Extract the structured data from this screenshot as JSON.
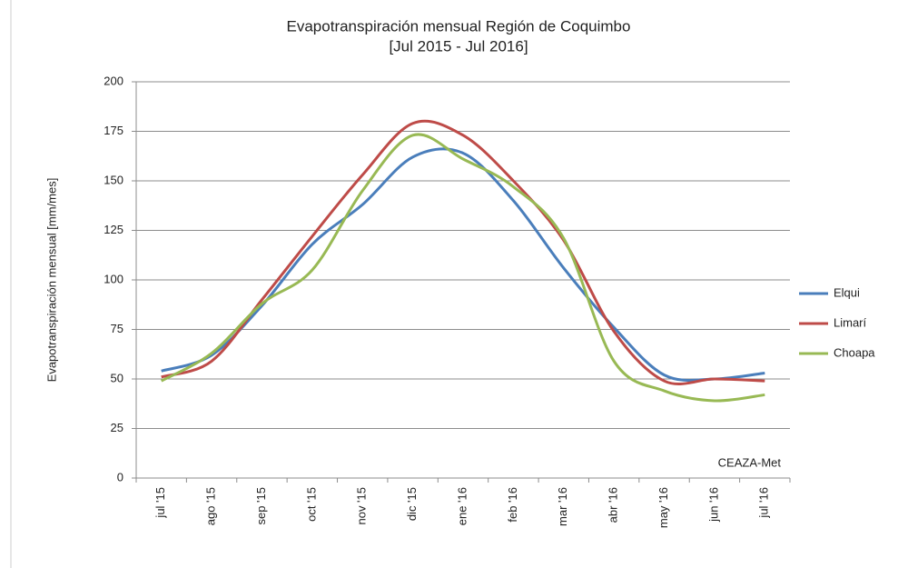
{
  "chart_data": {
    "type": "line",
    "title": "Evapotranspiración mensual Región de Coquimbo",
    "subtitle": "[Jul 2015 - Jul 2016]",
    "y_label": "Evapotranspiración mensual [mm/mes]",
    "annotation": "CEAZA-Met",
    "categories": [
      "jul '15",
      "ago '15",
      "sep '15",
      "oct '15",
      "nov '15",
      "dic '15",
      "ene '16",
      "feb '16",
      "mar '16",
      "abr '16",
      "may '16",
      "jun '16",
      "jul '16"
    ],
    "series": [
      {
        "name": "Elqui",
        "color": "#4a7ebb",
        "values": [
          54,
          62,
          87,
          118,
          138,
          162,
          164,
          140,
          106,
          76,
          52,
          50,
          53
        ]
      },
      {
        "name": "Limarí",
        "color": "#be4b48",
        "values": [
          51,
          59,
          90,
          122,
          153,
          179,
          173,
          150,
          120,
          74,
          49,
          50,
          49
        ]
      },
      {
        "name": "Choapa",
        "color": "#98b954",
        "values": [
          49,
          63,
          88,
          105,
          145,
          173,
          161,
          147,
          121,
          59,
          44,
          39,
          42
        ]
      }
    ],
    "ylim": [
      0,
      200
    ],
    "yticks": [
      0,
      25,
      50,
      75,
      100,
      125,
      150,
      175,
      200
    ],
    "grid": true,
    "legend": "right"
  }
}
